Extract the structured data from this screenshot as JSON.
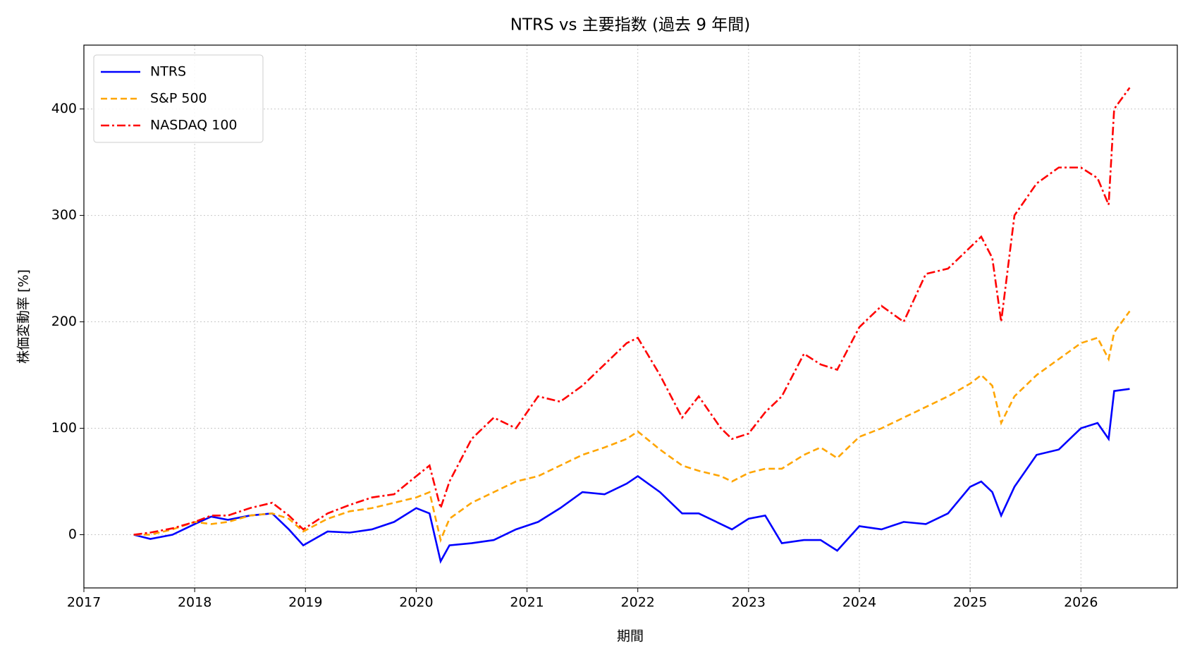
{
  "chart_data": {
    "type": "line",
    "title": "NTRS vs 主要指数 (過去 9 年間)",
    "x_label": "期間",
    "y_label": "株価変動率 [%]",
    "x": [
      2017.45,
      2017.6,
      2017.8,
      2018.0,
      2018.15,
      2018.3,
      2018.5,
      2018.7,
      2018.85,
      2018.98,
      2019.2,
      2019.4,
      2019.6,
      2019.8,
      2020.0,
      2020.12,
      2020.22,
      2020.3,
      2020.5,
      2020.7,
      2020.9,
      2021.1,
      2021.3,
      2021.5,
      2021.7,
      2021.9,
      2022.0,
      2022.2,
      2022.4,
      2022.55,
      2022.75,
      2022.85,
      2023.0,
      2023.15,
      2023.3,
      2023.5,
      2023.65,
      2023.8,
      2024.0,
      2024.2,
      2024.4,
      2024.6,
      2024.8,
      2025.0,
      2025.1,
      2025.2,
      2025.28,
      2025.4,
      2025.6,
      2025.8,
      2026.0,
      2026.15,
      2026.25,
      2026.3,
      2026.44
    ],
    "series": [
      {
        "name": "NTRS",
        "color": "#0000ff",
        "linestyle": "solid",
        "values": [
          0,
          -4,
          0,
          10,
          17,
          14,
          18,
          20,
          5,
          -10,
          3,
          2,
          5,
          12,
          25,
          20,
          -25,
          -10,
          -8,
          -5,
          5,
          12,
          25,
          40,
          38,
          48,
          55,
          40,
          20,
          20,
          10,
          5,
          15,
          18,
          -8,
          -5,
          -5,
          -15,
          8,
          5,
          12,
          10,
          20,
          45,
          50,
          40,
          18,
          45,
          75,
          80,
          100,
          105,
          90,
          135,
          137
        ]
      },
      {
        "name": "S&P 500",
        "color": "#ffa500",
        "linestyle": "dashed",
        "values": [
          0,
          0,
          5,
          12,
          10,
          12,
          18,
          20,
          15,
          3,
          15,
          22,
          25,
          30,
          35,
          40,
          -5,
          15,
          30,
          40,
          50,
          55,
          65,
          75,
          82,
          90,
          97,
          80,
          65,
          60,
          55,
          50,
          58,
          62,
          62,
          75,
          82,
          72,
          92,
          100,
          110,
          120,
          130,
          142,
          150,
          140,
          105,
          130,
          150,
          165,
          180,
          185,
          165,
          190,
          210
        ]
      },
      {
        "name": "NASDAQ 100",
        "color": "#ff0000",
        "linestyle": "dashdot",
        "values": [
          0,
          2,
          6,
          12,
          18,
          18,
          25,
          30,
          18,
          5,
          20,
          28,
          35,
          38,
          55,
          65,
          25,
          50,
          90,
          110,
          100,
          130,
          125,
          140,
          160,
          180,
          185,
          150,
          110,
          130,
          100,
          90,
          95,
          115,
          130,
          170,
          160,
          155,
          195,
          215,
          200,
          245,
          250,
          270,
          280,
          260,
          200,
          300,
          330,
          345,
          345,
          335,
          310,
          400,
          420
        ]
      }
    ],
    "xlim": [
      2017,
      2026.87
    ],
    "ylim": [
      -50,
      460
    ],
    "xticks": [
      2017,
      2018,
      2019,
      2020,
      2021,
      2022,
      2023,
      2024,
      2025,
      2026
    ],
    "yticks": [
      0,
      100,
      200,
      300,
      400
    ],
    "grid": true,
    "legend": "upper-left"
  }
}
